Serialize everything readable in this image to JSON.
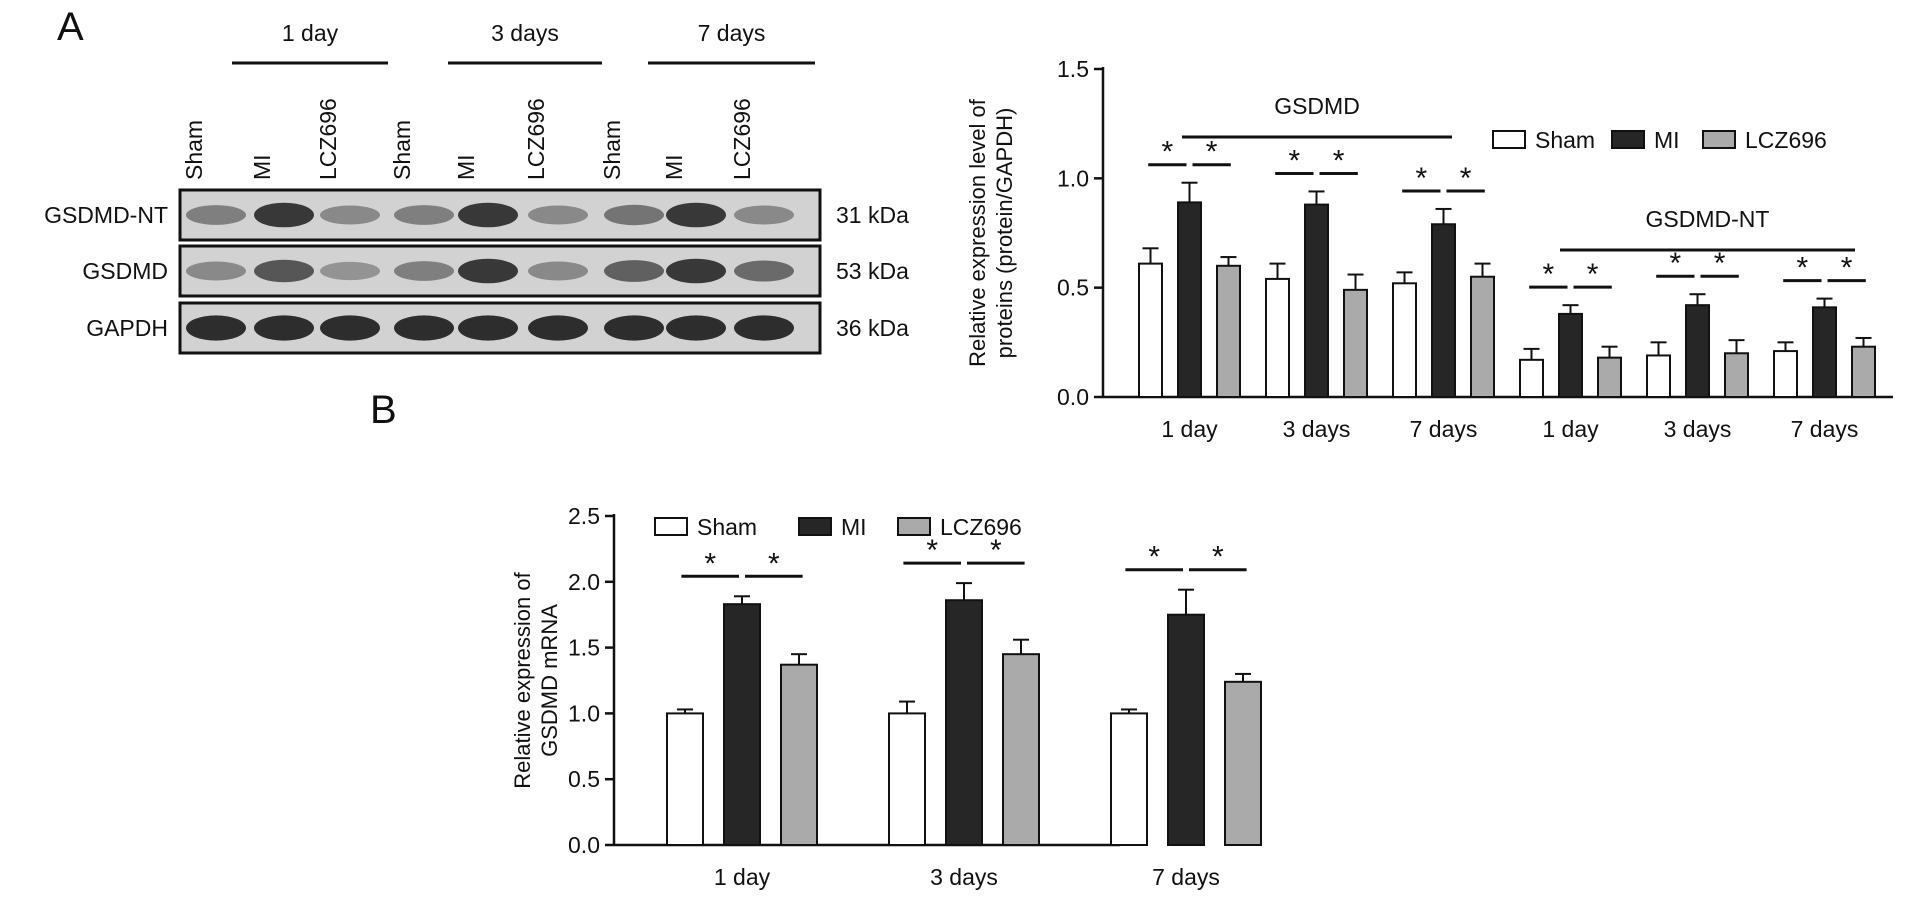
{
  "panels": {
    "a": "A",
    "b": "B"
  },
  "legend": {
    "sham": "Sham",
    "mi": "MI",
    "lcz": "LCZ696"
  },
  "colors": {
    "sham": "#ffffff",
    "mi": "#262626",
    "lcz": "#aaaaaa",
    "edge": "#111111"
  },
  "blot": {
    "time_labels": [
      "1 day",
      "3 days",
      "7 days"
    ],
    "lane_labels": [
      "Sham",
      "MI",
      "LCZ696",
      "Sham",
      "MI",
      "LCZ696",
      "Sham",
      "MI",
      "LCZ696"
    ],
    "rows": [
      {
        "label": "GSDMD-NT",
        "size": "31 kDa",
        "intensity": [
          0.55,
          0.9,
          0.5,
          0.55,
          0.9,
          0.5,
          0.6,
          0.9,
          0.5
        ]
      },
      {
        "label": "GSDMD",
        "size": "53 kDa",
        "intensity": [
          0.5,
          0.75,
          0.45,
          0.55,
          0.9,
          0.5,
          0.7,
          0.9,
          0.65
        ]
      },
      {
        "label": "GAPDH",
        "size": "36 kDa",
        "intensity": [
          0.95,
          0.95,
          0.95,
          0.95,
          0.95,
          0.95,
          0.95,
          0.95,
          0.95
        ]
      }
    ]
  },
  "chart_data": [
    {
      "type": "bar",
      "panel": "A",
      "categories": [
        "1 day",
        "3 days",
        "7 days",
        "1 day",
        "3 days",
        "7 days"
      ],
      "group_labels": [
        "GSDMD",
        "GSDMD-NT"
      ],
      "group_spans": [
        [
          0,
          2
        ],
        [
          3,
          5
        ]
      ],
      "ylabel": [
        "Relative expression level of",
        "proteins (protein/GAPDH)"
      ],
      "ylim": [
        0,
        1.5
      ],
      "yticks": [
        "0.0",
        "0.5",
        "1.0",
        "1.5"
      ],
      "series": [
        {
          "name": "Sham",
          "key": "sham",
          "values": [
            0.61,
            0.54,
            0.52,
            0.17,
            0.19,
            0.21
          ],
          "errors": [
            0.07,
            0.07,
            0.05,
            0.05,
            0.06,
            0.04
          ]
        },
        {
          "name": "MI",
          "key": "mi",
          "values": [
            0.89,
            0.88,
            0.79,
            0.38,
            0.42,
            0.41
          ],
          "errors": [
            0.09,
            0.06,
            0.07,
            0.04,
            0.05,
            0.04
          ]
        },
        {
          "name": "LCZ696",
          "key": "lcz",
          "values": [
            0.6,
            0.49,
            0.55,
            0.18,
            0.2,
            0.23
          ],
          "errors": [
            0.04,
            0.07,
            0.06,
            0.05,
            0.06,
            0.04
          ]
        }
      ],
      "significance": "*",
      "legend_position": "top-right"
    },
    {
      "type": "bar",
      "panel": "B",
      "categories": [
        "1 day",
        "3 days",
        "7 days"
      ],
      "ylabel": [
        "Relative expression of",
        "GSDMD mRNA"
      ],
      "ylim": [
        0,
        2.5
      ],
      "yticks": [
        "0.0",
        "0.5",
        "1.0",
        "1.5",
        "2.0",
        "2.5"
      ],
      "series": [
        {
          "name": "Sham",
          "key": "sham",
          "values": [
            1.0,
            1.0,
            1.0
          ],
          "errors": [
            0.03,
            0.09,
            0.03
          ]
        },
        {
          "name": "MI",
          "key": "mi",
          "values": [
            1.83,
            1.86,
            1.75
          ],
          "errors": [
            0.06,
            0.13,
            0.19
          ]
        },
        {
          "name": "LCZ696",
          "key": "lcz",
          "values": [
            1.37,
            1.45,
            1.24
          ],
          "errors": [
            0.08,
            0.11,
            0.06
          ]
        }
      ],
      "significance": "*",
      "legend_position": "top"
    }
  ]
}
